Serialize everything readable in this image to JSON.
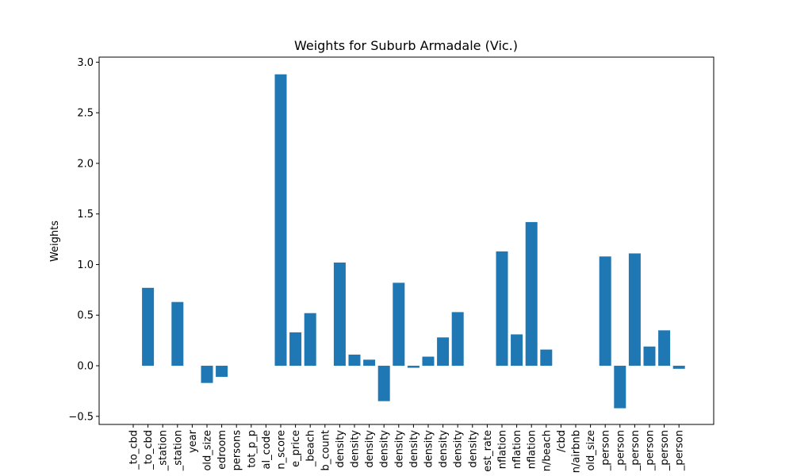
{
  "chart_data": {
    "type": "bar",
    "title": "Weights for Suburb Armadale (Vic.)",
    "xlabel": "",
    "ylabel": "Weights",
    "ylim": [
      -0.58,
      3.05
    ],
    "yticks": [
      -0.5,
      0.0,
      0.5,
      1.0,
      1.5,
      2.0,
      2.5,
      3.0
    ],
    "ytick_labels": [
      "−0.5",
      "0.0",
      "0.5",
      "1.0",
      "1.5",
      "2.0",
      "2.5",
      "3.0"
    ],
    "color": "#1f77b4",
    "grid": false,
    "categories": [
      "_to_cbd",
      "_to_cbd",
      "_station",
      "_station",
      "year",
      "old_size",
      "edroom",
      "persons",
      "tot_p_p",
      "al_code",
      "n_score",
      "e_price",
      "_beach",
      "b_count",
      "density",
      "density",
      "density",
      "density",
      "density",
      "density",
      "density",
      "density",
      "density",
      "density",
      "est_rate",
      "nflation",
      "nflation",
      "nflation",
      "n/beach",
      "/cbd",
      "n/airbnb",
      "old_size",
      "_person",
      "_person",
      "_person",
      "_person",
      "_person",
      "_person"
    ],
    "values": [
      0,
      0.77,
      0,
      0.63,
      0,
      -0.17,
      -0.11,
      0,
      0,
      0,
      2.88,
      0.33,
      0.52,
      0,
      1.02,
      0.11,
      0.06,
      -0.35,
      0.82,
      -0.02,
      0.09,
      0.28,
      0.53,
      0,
      0,
      1.13,
      0.31,
      1.42,
      0.16,
      0,
      0,
      0,
      1.08,
      -0.42,
      1.11,
      0.19,
      0.35,
      -0.03
    ]
  }
}
